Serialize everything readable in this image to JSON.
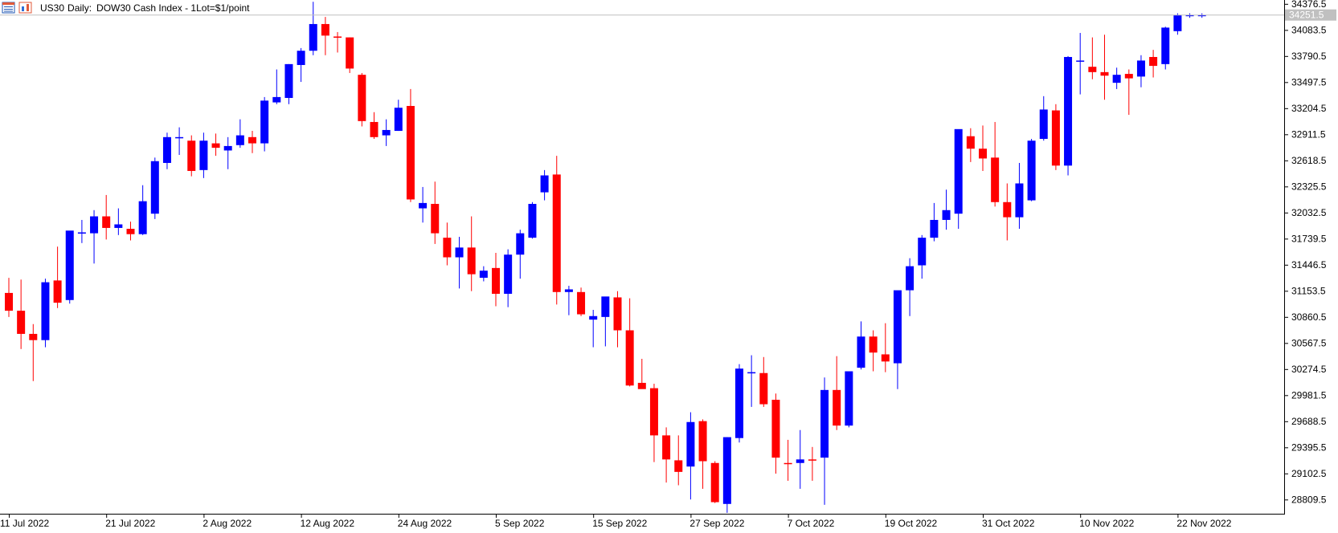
{
  "header": {
    "symbol": "US30",
    "timeframe": "Daily:",
    "description": "DOW30 Cash Index - 1Lot=$1/point",
    "icon_names": [
      "spreadsheet-icon",
      "chart-icon"
    ]
  },
  "colors": {
    "bull": "#0000ff",
    "bear": "#ff0000",
    "axis": "#000000",
    "text": "#000000",
    "last_price_bg": "#c0c0c0",
    "last_price_text": "#ffffff",
    "price_line": "#c0c0c0"
  },
  "chart_data": {
    "type": "candlestick",
    "title": "US30, Daily:  DOW30 Cash Index - 1Lot=$1/point",
    "y_tick_labels": [
      "34376.5",
      "34083.5",
      "33790.5",
      "33497.5",
      "33204.5",
      "32911.5",
      "32618.5",
      "32325.5",
      "32032.5",
      "31739.5",
      "31446.5",
      "31153.5",
      "30860.5",
      "30567.5",
      "30274.5",
      "29981.5",
      "29688.5",
      "29395.5",
      "29102.5",
      "28809.5"
    ],
    "x_tick_labels": [
      "11 Jul 2022",
      "21 Jul 2022",
      "2 Aug 2022",
      "12 Aug 2022",
      "24 Aug 2022",
      "5 Sep 2022",
      "15 Sep 2022",
      "27 Sep 2022",
      "7 Oct 2022",
      "19 Oct 2022",
      "31 Oct 2022",
      "10 Nov 2022",
      "22 Nov 2022"
    ],
    "y_range": [
      28650,
      34420
    ],
    "last_price": "34251.5",
    "candles": [
      {
        "o": 31130,
        "h": 31300,
        "l": 30860,
        "c": 30930
      },
      {
        "o": 30930,
        "h": 31280,
        "l": 30500,
        "c": 30670
      },
      {
        "o": 30670,
        "h": 30780,
        "l": 30140,
        "c": 30600
      },
      {
        "o": 30600,
        "h": 31290,
        "l": 30520,
        "c": 31250
      },
      {
        "o": 31270,
        "h": 31650,
        "l": 30960,
        "c": 31020
      },
      {
        "o": 31050,
        "h": 31820,
        "l": 31010,
        "c": 31830
      },
      {
        "o": 31810,
        "h": 31950,
        "l": 31690,
        "c": 31810
      },
      {
        "o": 31800,
        "h": 32060,
        "l": 31460,
        "c": 31990
      },
      {
        "o": 31990,
        "h": 32230,
        "l": 31730,
        "c": 31860
      },
      {
        "o": 31860,
        "h": 32080,
        "l": 31780,
        "c": 31900
      },
      {
        "o": 31850,
        "h": 31930,
        "l": 31720,
        "c": 31790
      },
      {
        "o": 31790,
        "h": 32340,
        "l": 31780,
        "c": 32160
      },
      {
        "o": 32020,
        "h": 32650,
        "l": 31960,
        "c": 32610
      },
      {
        "o": 32590,
        "h": 32930,
        "l": 32520,
        "c": 32880
      },
      {
        "o": 32880,
        "h": 32990,
        "l": 32680,
        "c": 32880
      },
      {
        "o": 32840,
        "h": 32900,
        "l": 32440,
        "c": 32500
      },
      {
        "o": 32510,
        "h": 32930,
        "l": 32420,
        "c": 32840
      },
      {
        "o": 32810,
        "h": 32920,
        "l": 32670,
        "c": 32760
      },
      {
        "o": 32730,
        "h": 32880,
        "l": 32520,
        "c": 32780
      },
      {
        "o": 32790,
        "h": 33080,
        "l": 32760,
        "c": 32900
      },
      {
        "o": 32880,
        "h": 32950,
        "l": 32700,
        "c": 32810
      },
      {
        "o": 32810,
        "h": 33330,
        "l": 32720,
        "c": 33290
      },
      {
        "o": 33270,
        "h": 33640,
        "l": 33250,
        "c": 33330
      },
      {
        "o": 33320,
        "h": 33700,
        "l": 33250,
        "c": 33700
      },
      {
        "o": 33690,
        "h": 33880,
        "l": 33500,
        "c": 33850
      },
      {
        "o": 33850,
        "h": 34400,
        "l": 33800,
        "c": 34150
      },
      {
        "o": 34150,
        "h": 34230,
        "l": 33800,
        "c": 34020
      },
      {
        "o": 34010,
        "h": 34060,
        "l": 33830,
        "c": 34000
      },
      {
        "o": 34000,
        "h": 34000,
        "l": 33600,
        "c": 33650
      },
      {
        "o": 33580,
        "h": 33600,
        "l": 33000,
        "c": 33060
      },
      {
        "o": 33050,
        "h": 33160,
        "l": 32860,
        "c": 32880
      },
      {
        "o": 32900,
        "h": 33080,
        "l": 32780,
        "c": 32960
      },
      {
        "o": 32950,
        "h": 33300,
        "l": 32950,
        "c": 33210
      },
      {
        "o": 33230,
        "h": 33420,
        "l": 32150,
        "c": 32180
      },
      {
        "o": 32080,
        "h": 32320,
        "l": 31920,
        "c": 32140
      },
      {
        "o": 32130,
        "h": 32380,
        "l": 31680,
        "c": 31800
      },
      {
        "o": 31750,
        "h": 31920,
        "l": 31440,
        "c": 31530
      },
      {
        "o": 31530,
        "h": 31760,
        "l": 31180,
        "c": 31640
      },
      {
        "o": 31640,
        "h": 31990,
        "l": 31150,
        "c": 31340
      },
      {
        "o": 31300,
        "h": 31430,
        "l": 31260,
        "c": 31380
      },
      {
        "o": 31410,
        "h": 31580,
        "l": 30980,
        "c": 31120
      },
      {
        "o": 31120,
        "h": 31620,
        "l": 30970,
        "c": 31560
      },
      {
        "o": 31560,
        "h": 31840,
        "l": 31290,
        "c": 31800
      },
      {
        "o": 31750,
        "h": 32150,
        "l": 31740,
        "c": 32130
      },
      {
        "o": 32260,
        "h": 32510,
        "l": 32170,
        "c": 32450
      },
      {
        "o": 32460,
        "h": 32670,
        "l": 31000,
        "c": 31140
      },
      {
        "o": 31140,
        "h": 31210,
        "l": 30880,
        "c": 31170
      },
      {
        "o": 31140,
        "h": 31190,
        "l": 30870,
        "c": 30890
      },
      {
        "o": 30830,
        "h": 30940,
        "l": 30520,
        "c": 30870
      },
      {
        "o": 30860,
        "h": 31080,
        "l": 30530,
        "c": 31090
      },
      {
        "o": 31080,
        "h": 31150,
        "l": 30520,
        "c": 30710
      },
      {
        "o": 30710,
        "h": 31070,
        "l": 30080,
        "c": 30090
      },
      {
        "o": 30120,
        "h": 30390,
        "l": 30080,
        "c": 30050
      },
      {
        "o": 30060,
        "h": 30110,
        "l": 29230,
        "c": 29530
      },
      {
        "o": 29530,
        "h": 29620,
        "l": 29000,
        "c": 29260
      },
      {
        "o": 29250,
        "h": 29530,
        "l": 28970,
        "c": 29120
      },
      {
        "o": 29180,
        "h": 29790,
        "l": 28810,
        "c": 29680
      },
      {
        "o": 29690,
        "h": 29710,
        "l": 28930,
        "c": 29240
      },
      {
        "o": 29220,
        "h": 29240,
        "l": 28770,
        "c": 28780
      },
      {
        "o": 28760,
        "h": 29510,
        "l": 28660,
        "c": 29510
      },
      {
        "o": 29500,
        "h": 30330,
        "l": 29450,
        "c": 30280
      },
      {
        "o": 30240,
        "h": 30430,
        "l": 29850,
        "c": 30240
      },
      {
        "o": 30230,
        "h": 30410,
        "l": 29850,
        "c": 29880
      },
      {
        "o": 29930,
        "h": 30000,
        "l": 29100,
        "c": 29280
      },
      {
        "o": 29220,
        "h": 29480,
        "l": 29020,
        "c": 29210
      },
      {
        "o": 29220,
        "h": 29590,
        "l": 28930,
        "c": 29260
      },
      {
        "o": 29260,
        "h": 29400,
        "l": 29020,
        "c": 29250
      },
      {
        "o": 29280,
        "h": 30180,
        "l": 28750,
        "c": 30040
      },
      {
        "o": 30040,
        "h": 30420,
        "l": 29590,
        "c": 29640
      },
      {
        "o": 29640,
        "h": 30220,
        "l": 29620,
        "c": 30250
      },
      {
        "o": 30290,
        "h": 30810,
        "l": 30270,
        "c": 30640
      },
      {
        "o": 30640,
        "h": 30710,
        "l": 30250,
        "c": 30460
      },
      {
        "o": 30440,
        "h": 30790,
        "l": 30240,
        "c": 30360
      },
      {
        "o": 30340,
        "h": 31150,
        "l": 30050,
        "c": 31160
      },
      {
        "o": 31160,
        "h": 31520,
        "l": 30870,
        "c": 31430
      },
      {
        "o": 31440,
        "h": 31780,
        "l": 31290,
        "c": 31750
      },
      {
        "o": 31750,
        "h": 32140,
        "l": 31710,
        "c": 31950
      },
      {
        "o": 31950,
        "h": 32290,
        "l": 31840,
        "c": 32060
      },
      {
        "o": 32020,
        "h": 32960,
        "l": 31850,
        "c": 32970
      },
      {
        "o": 32890,
        "h": 32980,
        "l": 32600,
        "c": 32750
      },
      {
        "o": 32750,
        "h": 33010,
        "l": 32500,
        "c": 32640
      },
      {
        "o": 32650,
        "h": 33050,
        "l": 32100,
        "c": 32150
      },
      {
        "o": 32150,
        "h": 32360,
        "l": 31720,
        "c": 31980
      },
      {
        "o": 31980,
        "h": 32590,
        "l": 31850,
        "c": 32360
      },
      {
        "o": 32170,
        "h": 32860,
        "l": 32160,
        "c": 32840
      },
      {
        "o": 32860,
        "h": 33340,
        "l": 32840,
        "c": 33190
      },
      {
        "o": 33180,
        "h": 33250,
        "l": 32510,
        "c": 32560
      },
      {
        "o": 32560,
        "h": 33790,
        "l": 32450,
        "c": 33780
      },
      {
        "o": 33740,
        "h": 34050,
        "l": 33360,
        "c": 33740
      },
      {
        "o": 33670,
        "h": 34000,
        "l": 33530,
        "c": 33610
      },
      {
        "o": 33610,
        "h": 34030,
        "l": 33300,
        "c": 33570
      },
      {
        "o": 33490,
        "h": 33660,
        "l": 33420,
        "c": 33580
      },
      {
        "o": 33590,
        "h": 33640,
        "l": 33130,
        "c": 33540
      },
      {
        "o": 33560,
        "h": 33800,
        "l": 33440,
        "c": 33740
      },
      {
        "o": 33780,
        "h": 33860,
        "l": 33550,
        "c": 33680
      },
      {
        "o": 33700,
        "h": 34120,
        "l": 33640,
        "c": 34110
      },
      {
        "o": 34070,
        "h": 34270,
        "l": 34030,
        "c": 34250
      },
      {
        "o": 34250,
        "h": 34270,
        "l": 34220,
        "c": 34251.5
      },
      {
        "o": 34251.5,
        "h": 34270,
        "l": 34220,
        "c": 34251.5
      }
    ]
  }
}
